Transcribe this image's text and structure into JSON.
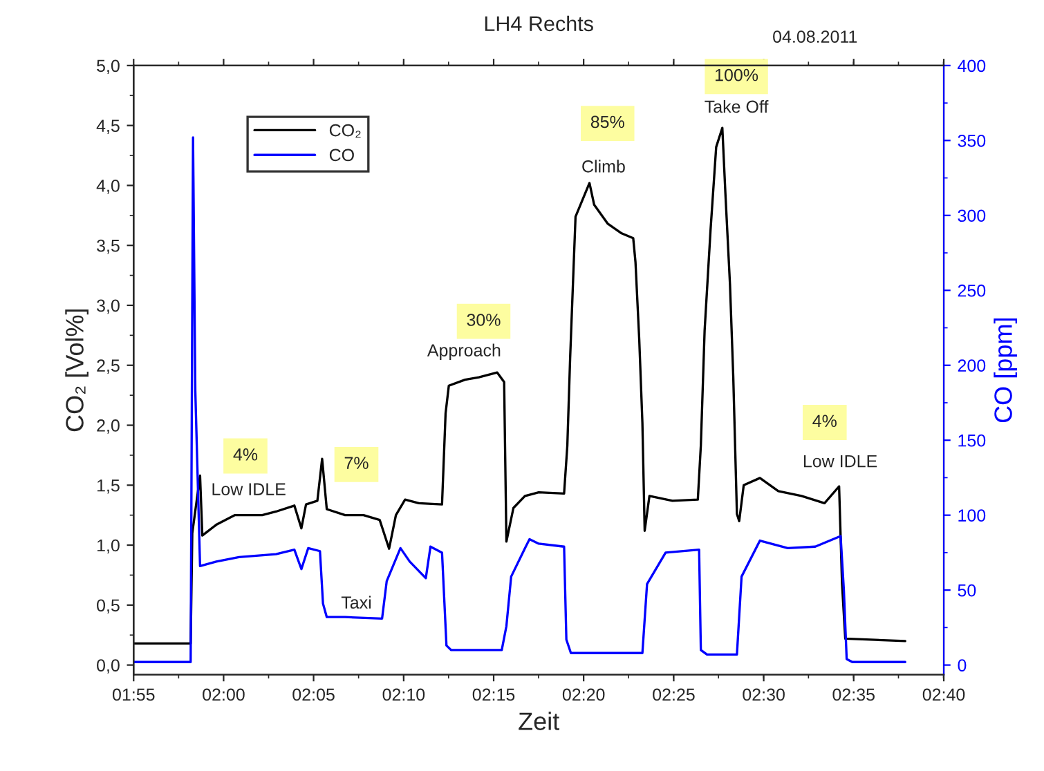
{
  "chart_data": {
    "type": "line",
    "title": "LH4 Rechts",
    "xlabel": "Zeit",
    "ylabel": "CO₂ [Vol%]",
    "y2label": "CO [ppm]",
    "xlim": [
      1.9167,
      2.6667
    ],
    "xticks": [
      {
        "value": 1.9167,
        "label": "01:55"
      },
      {
        "value": 2,
        "label": "02:00"
      },
      {
        "value": 2.0833,
        "label": "02:05"
      },
      {
        "value": 2.1667,
        "label": "02:10"
      },
      {
        "value": 2.25,
        "label": "02:15"
      },
      {
        "value": 2.3333,
        "label": "02:20"
      },
      {
        "value": 2.4167,
        "label": "02:25"
      },
      {
        "value": 2.5,
        "label": "02:30"
      },
      {
        "value": 2.5833,
        "label": "02:35"
      },
      {
        "value": 2.6667,
        "label": "02:40"
      }
    ],
    "ylim": [
      -0.08,
      5.0
    ],
    "yticks": [
      {
        "value": 0,
        "label": "0,0"
      },
      {
        "value": 0.5,
        "label": "0,5"
      },
      {
        "value": 1,
        "label": "1,0"
      },
      {
        "value": 1.5,
        "label": "1,5"
      },
      {
        "value": 2,
        "label": "2,0"
      },
      {
        "value": 2.5,
        "label": "2,5"
      },
      {
        "value": 3,
        "label": "3,0"
      },
      {
        "value": 3.5,
        "label": "3,5"
      },
      {
        "value": 4,
        "label": "4,0"
      },
      {
        "value": 4.5,
        "label": "4,5"
      },
      {
        "value": 5,
        "label": "5,0"
      }
    ],
    "y2lim": [
      -6.4,
      400
    ],
    "y2ticks": [
      0,
      50,
      100,
      150,
      200,
      250,
      300,
      350,
      400
    ],
    "grid": false,
    "legend": "top left",
    "marker": "none",
    "line_style": "solid",
    "series": [
      {
        "name": "CO₂",
        "color": "#000000",
        "x": [
          1.9167,
          1.9695,
          1.971,
          1.9782,
          1.9803,
          1.9932,
          2.0102,
          2.0357,
          2.0485,
          2.0655,
          2.072,
          2.0763,
          2.0868,
          2.0912,
          2.0955,
          2.1125,
          2.1295,
          2.1445,
          2.1532,
          2.1595,
          2.168,
          2.1807,
          2.2022,
          2.2055,
          2.2085,
          2.2235,
          2.2363,
          2.2533,
          2.2597,
          2.2618,
          2.2683,
          2.279,
          2.2917,
          2.3152,
          2.3182,
          2.3208,
          2.3237,
          2.3258,
          2.3387,
          2.343,
          2.3557,
          2.3685,
          2.3792,
          2.3813,
          2.3848,
          2.3877,
          2.3898,
          2.3942,
          2.4155,
          2.439,
          2.4418,
          2.4453,
          2.4508,
          2.456,
          2.4617,
          2.4645,
          2.4688,
          2.4718,
          2.4752,
          2.4773,
          2.4815,
          2.4965,
          2.5135,
          2.535,
          2.5563,
          2.5698,
          2.5725,
          2.5755,
          2.631
        ],
        "values": [
          0.18,
          0.18,
          1.1,
          1.58,
          1.08,
          1.17,
          1.25,
          1.25,
          1.28,
          1.33,
          1.14,
          1.34,
          1.37,
          1.72,
          1.3,
          1.25,
          1.25,
          1.21,
          0.97,
          1.25,
          1.38,
          1.35,
          1.34,
          2.1,
          2.33,
          2.38,
          2.4,
          2.44,
          2.36,
          1.03,
          1.31,
          1.41,
          1.44,
          1.43,
          1.83,
          2.56,
          3.25,
          3.74,
          4.02,
          3.84,
          3.68,
          3.6,
          3.56,
          3.36,
          2.71,
          2.02,
          1.12,
          1.41,
          1.37,
          1.38,
          1.83,
          2.79,
          3.63,
          4.32,
          4.48,
          3.94,
          3.17,
          2.41,
          1.26,
          1.2,
          1.5,
          1.56,
          1.45,
          1.41,
          1.35,
          1.49,
          0.68,
          0.22,
          0.2
        ]
      },
      {
        "name": "CO",
        "color": "#0000ff",
        "axis": "y2",
        "x": [
          1.9167,
          1.9695,
          1.9717,
          1.9738,
          1.9782,
          1.9932,
          2.0143,
          2.0485,
          2.0655,
          2.072,
          2.0783,
          2.0892,
          2.092,
          2.0955,
          2.1125,
          2.1467,
          2.151,
          2.1637,
          2.1723,
          2.1872,
          2.1915,
          2.2022,
          2.2063,
          2.2107,
          2.2575,
          2.2618,
          2.2662,
          2.279,
          2.2832,
          2.2917,
          2.3152,
          2.3173,
          2.3215,
          2.3877,
          2.392,
          2.4092,
          2.4402,
          2.4418,
          2.4475,
          2.4752,
          2.4795,
          2.4965,
          2.5222,
          2.5477,
          2.5712,
          2.5742,
          2.5768,
          2.582,
          2.631
        ],
        "values": [
          2,
          2,
          352,
          183,
          66,
          69,
          72,
          74,
          77,
          64,
          78,
          76,
          41,
          32,
          32,
          31,
          56,
          78,
          69,
          58,
          79,
          75,
          13,
          10,
          10,
          26,
          59,
          78,
          84,
          81,
          79,
          17,
          8,
          8,
          54,
          75,
          77,
          10,
          7,
          7,
          59,
          83,
          78,
          79,
          86,
          50,
          4,
          2,
          2
        ]
      }
    ],
    "annotations": [
      "4%",
      "Low IDLE",
      "7%",
      "Taxi",
      "30%",
      "Approach",
      "85%",
      "Climb",
      "100%",
      "Take Off",
      "4%",
      "Low IDLE",
      "04.08.2011"
    ]
  }
}
